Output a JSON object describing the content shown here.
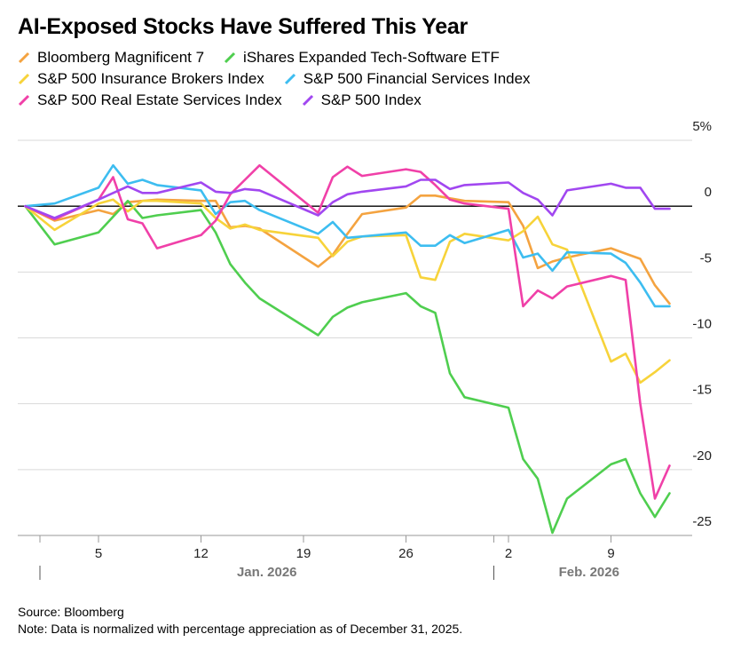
{
  "chart_data": {
    "type": "line",
    "title": "AI-Exposed Stocks Have Suffered This Year",
    "source": "Source: Bloomberg",
    "note": "Note: Data is normalized with percentage appreciation as of December 31, 2025.",
    "x": [
      "2025-12-31",
      "2026-01-02",
      "2026-01-05",
      "2026-01-06",
      "2026-01-07",
      "2026-01-08",
      "2026-01-09",
      "2026-01-12",
      "2026-01-13",
      "2026-01-14",
      "2026-01-15",
      "2026-01-16",
      "2026-01-20",
      "2026-01-21",
      "2026-01-22",
      "2026-01-23",
      "2026-01-26",
      "2026-01-27",
      "2026-01-28",
      "2026-01-29",
      "2026-01-30",
      "2026-02-02",
      "2026-02-03",
      "2026-02-04",
      "2026-02-05",
      "2026-02-06",
      "2026-02-09",
      "2026-02-10",
      "2026-02-11",
      "2026-02-12",
      "2026-02-13"
    ],
    "xlim": [
      "2025-12-31",
      "2026-02-14"
    ],
    "xticks": [
      {
        "value": "2026-01-05",
        "label": "5"
      },
      {
        "value": "2026-01-12",
        "label": "12"
      },
      {
        "value": "2026-01-19",
        "label": "19"
      },
      {
        "value": "2026-01-26",
        "label": "26"
      },
      {
        "value": "2026-02-02",
        "label": "2"
      },
      {
        "value": "2026-02-09",
        "label": "9"
      }
    ],
    "x_groups": [
      {
        "label": "Jan. 2026",
        "start": "2026-01-01"
      },
      {
        "label": "Feb. 2026",
        "start": "2026-02-01"
      }
    ],
    "ylim": [
      -25,
      5
    ],
    "yticks": [
      {
        "value": 5,
        "label": "5%"
      },
      0,
      -5,
      -10,
      -15,
      -20,
      -25
    ],
    "grid": true,
    "series": [
      {
        "name": "Bloomberg Magnificent 7",
        "color": "#f4a340",
        "values": [
          0,
          -1.1,
          -0.3,
          -0.6,
          0.3,
          0.4,
          0.5,
          0.4,
          0.4,
          -1.6,
          -1.5,
          -1.7,
          -4.6,
          -3.7,
          -2.1,
          -0.6,
          -0.1,
          0.8,
          0.8,
          0.6,
          0.4,
          0.3,
          -1.5,
          -4.7,
          -4.2,
          -3.9,
          -3.2,
          -3.6,
          -4.0,
          -6.0,
          -7.4
        ]
      },
      {
        "name": "iShares Expanded Tech-Software ETF",
        "color": "#4fce4f",
        "values": [
          0,
          -2.9,
          -2.0,
          -0.8,
          0.4,
          -0.9,
          -0.7,
          -0.3,
          -2.0,
          -4.4,
          -5.8,
          -7.0,
          -9.8,
          -8.4,
          -7.7,
          -7.3,
          -6.6,
          -7.6,
          -8.1,
          -12.7,
          -14.5,
          -15.3,
          -19.2,
          -20.7,
          -24.8,
          -22.2,
          -19.6,
          -19.2,
          -21.8,
          -23.6,
          -21.8
        ]
      },
      {
        "name": "S&P 500 Insurance Brokers Index",
        "color": "#f7d33a",
        "values": [
          0,
          -1.8,
          0.2,
          0.5,
          -0.4,
          0.4,
          0.4,
          0.2,
          -0.9,
          -1.7,
          -1.4,
          -1.8,
          -2.4,
          -3.8,
          -2.7,
          -2.3,
          -2.2,
          -5.4,
          -5.6,
          -2.7,
          -2.1,
          -2.6,
          -1.9,
          -0.8,
          -2.9,
          -3.3,
          -11.8,
          -11.2,
          -13.4,
          -12.6,
          -11.7
        ]
      },
      {
        "name": "S&P 500 Financial Services Index",
        "color": "#3dbdf0",
        "values": [
          0,
          0.2,
          1.4,
          3.1,
          1.7,
          2.0,
          1.6,
          1.2,
          -0.6,
          0.3,
          0.4,
          -0.3,
          -2.1,
          -1.2,
          -2.4,
          -2.3,
          -2.0,
          -3.0,
          -3.0,
          -2.2,
          -2.8,
          -1.8,
          -3.9,
          -3.6,
          -4.9,
          -3.5,
          -3.6,
          -4.3,
          -5.8,
          -7.6,
          -7.6
        ]
      },
      {
        "name": "S&P 500 Real Estate Services Index",
        "color": "#f040a8",
        "values": [
          0,
          -1.0,
          0.5,
          2.2,
          -1.0,
          -1.3,
          -3.2,
          -2.2,
          -1.1,
          0.9,
          2.0,
          3.1,
          -0.5,
          2.2,
          3.0,
          2.3,
          2.8,
          2.6,
          1.6,
          0.5,
          0.2,
          -0.2,
          -7.6,
          -6.4,
          -7.0,
          -6.1,
          -5.3,
          -5.6,
          -15.0,
          -22.2,
          -19.7
        ]
      },
      {
        "name": "S&P 500 Index",
        "color": "#a147f0",
        "values": [
          0,
          -0.9,
          0.5,
          1.0,
          1.5,
          1.0,
          1.0,
          1.8,
          1.1,
          1.0,
          1.3,
          1.2,
          -0.7,
          0.3,
          0.9,
          1.1,
          1.5,
          2.0,
          2.0,
          1.3,
          1.6,
          1.8,
          1.0,
          0.5,
          -0.7,
          1.2,
          1.7,
          1.4,
          1.4,
          -0.2,
          -0.2
        ]
      }
    ]
  }
}
